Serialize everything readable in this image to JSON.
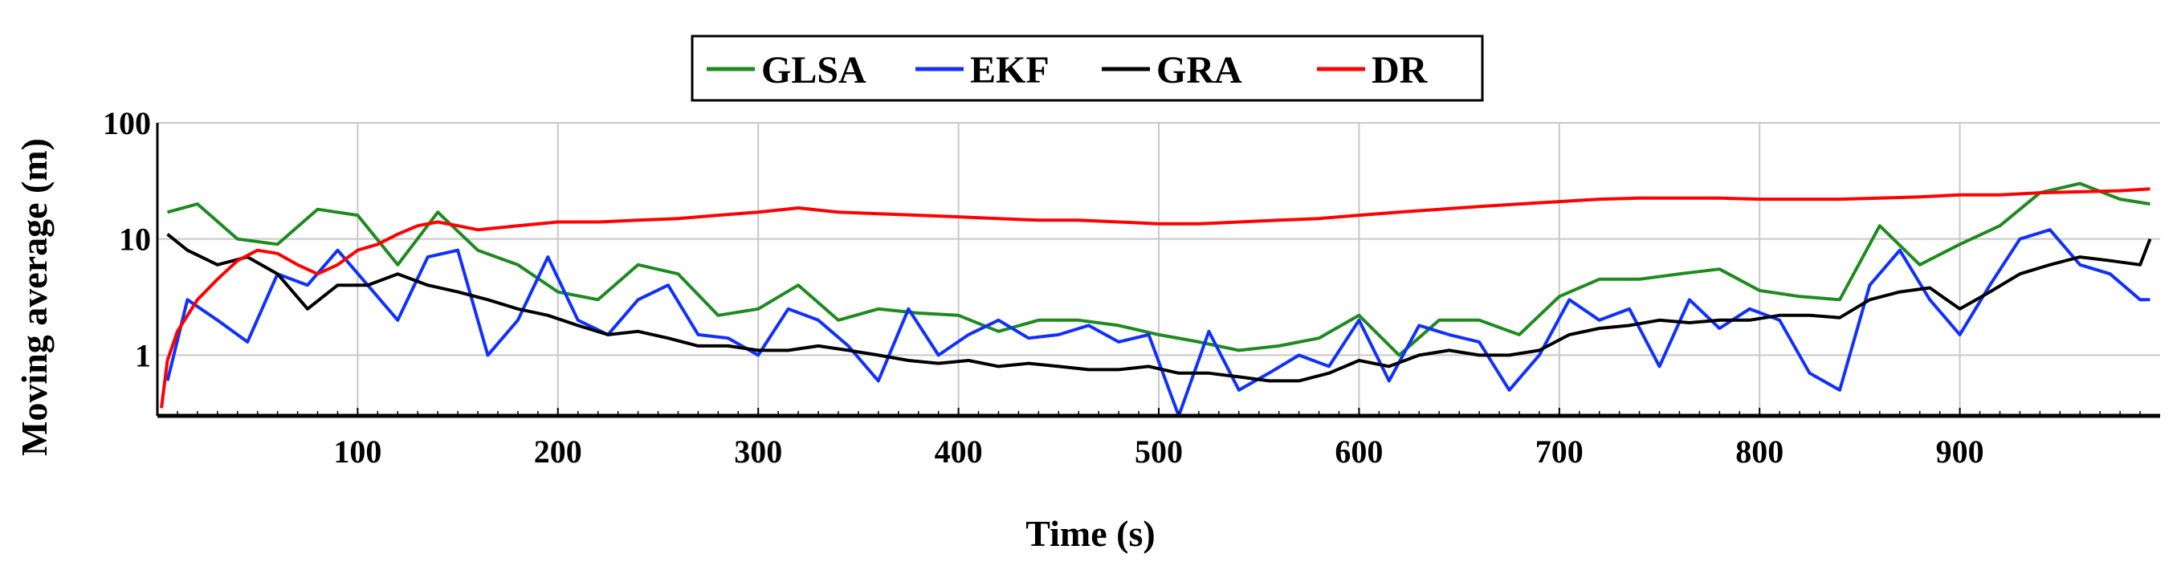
{
  "chart_data": {
    "type": "line",
    "title": "",
    "xlabel": "Time (s)",
    "ylabel": "Moving average (m)",
    "yscale": "log",
    "xlim": [
      0,
      1000
    ],
    "ylim": [
      0.3,
      100
    ],
    "x_ticks": [
      100,
      200,
      300,
      400,
      500,
      600,
      700,
      800,
      900
    ],
    "x_tick_labels": [
      "100",
      "200",
      "300",
      "400",
      "500",
      "600",
      "700",
      "800",
      "900"
    ],
    "y_ticks": [
      1,
      10,
      100
    ],
    "y_tick_labels": [
      "1",
      "10",
      "100"
    ],
    "grid": true,
    "legend_position": "top-center",
    "series": [
      {
        "name": "GLSA",
        "color": "#1f8a1f",
        "x": [
          5,
          20,
          40,
          60,
          80,
          100,
          120,
          140,
          160,
          180,
          200,
          220,
          240,
          260,
          280,
          300,
          320,
          340,
          360,
          380,
          400,
          420,
          440,
          460,
          480,
          500,
          520,
          540,
          560,
          580,
          600,
          620,
          640,
          660,
          680,
          700,
          720,
          740,
          760,
          780,
          800,
          820,
          840,
          860,
          880,
          900,
          920,
          940,
          960,
          980,
          995
        ],
        "y": [
          17,
          20,
          10,
          9,
          18,
          16,
          6,
          17,
          8,
          6,
          3.5,
          3,
          6,
          5,
          2.2,
          2.5,
          4,
          2,
          2.5,
          2.3,
          2.2,
          1.6,
          2,
          2,
          1.8,
          1.5,
          1.3,
          1.1,
          1.2,
          1.4,
          2.2,
          1,
          2,
          2,
          1.5,
          3.2,
          4.5,
          4.5,
          5,
          5.5,
          3.6,
          3.2,
          3,
          13,
          6,
          9,
          13,
          25,
          30,
          22,
          20
        ]
      },
      {
        "name": "EKF",
        "color": "#1030ff",
        "x": [
          5,
          15,
          30,
          45,
          60,
          75,
          90,
          105,
          120,
          135,
          150,
          165,
          180,
          195,
          210,
          225,
          240,
          255,
          270,
          285,
          300,
          315,
          330,
          345,
          360,
          375,
          390,
          405,
          420,
          435,
          450,
          465,
          480,
          495,
          510,
          525,
          540,
          555,
          570,
          585,
          600,
          615,
          630,
          645,
          660,
          675,
          690,
          705,
          720,
          735,
          750,
          765,
          780,
          795,
          810,
          825,
          840,
          855,
          870,
          885,
          900,
          915,
          930,
          945,
          960,
          975,
          990,
          995
        ],
        "y": [
          0.6,
          3,
          2,
          1.3,
          5,
          4,
          8,
          4,
          2,
          7,
          8,
          1,
          2,
          7,
          2,
          1.5,
          3,
          4,
          1.5,
          1.4,
          1,
          2.5,
          2,
          1.2,
          0.6,
          2.5,
          1,
          1.5,
          2,
          1.4,
          1.5,
          1.8,
          1.3,
          1.5,
          0.3,
          1.6,
          0.5,
          0.7,
          1,
          0.8,
          2,
          0.6,
          1.8,
          1.5,
          1.3,
          0.5,
          1,
          3,
          2,
          2.5,
          0.8,
          3,
          1.7,
          2.5,
          2,
          0.7,
          0.5,
          4,
          8,
          3,
          1.5,
          4,
          10,
          12,
          6,
          5,
          3,
          3
        ]
      },
      {
        "name": "GRA",
        "color": "#000000",
        "x": [
          5,
          15,
          30,
          45,
          60,
          75,
          90,
          105,
          120,
          135,
          150,
          165,
          180,
          195,
          210,
          225,
          240,
          255,
          270,
          285,
          300,
          315,
          330,
          345,
          360,
          375,
          390,
          405,
          420,
          435,
          450,
          465,
          480,
          495,
          510,
          525,
          540,
          555,
          570,
          585,
          600,
          615,
          630,
          645,
          660,
          675,
          690,
          705,
          720,
          735,
          750,
          765,
          780,
          795,
          810,
          825,
          840,
          855,
          870,
          885,
          900,
          915,
          930,
          945,
          960,
          975,
          990,
          995
        ],
        "y": [
          11,
          8,
          6,
          7,
          5,
          2.5,
          4,
          4,
          5,
          4,
          3.5,
          3,
          2.5,
          2.2,
          1.8,
          1.5,
          1.6,
          1.4,
          1.2,
          1.2,
          1.1,
          1.1,
          1.2,
          1.1,
          1,
          0.9,
          0.85,
          0.9,
          0.8,
          0.85,
          0.8,
          0.75,
          0.75,
          0.8,
          0.7,
          0.7,
          0.65,
          0.6,
          0.6,
          0.7,
          0.9,
          0.8,
          1,
          1.1,
          1,
          1,
          1.1,
          1.5,
          1.7,
          1.8,
          2,
          1.9,
          2,
          2,
          2.2,
          2.2,
          2.1,
          3,
          3.5,
          3.8,
          2.5,
          3.5,
          5,
          6,
          7,
          6.5,
          6,
          10
        ]
      },
      {
        "name": "DR",
        "color": "#ff0000",
        "x": [
          2,
          5,
          10,
          20,
          30,
          40,
          50,
          60,
          70,
          80,
          90,
          100,
          110,
          120,
          130,
          140,
          150,
          160,
          180,
          200,
          220,
          240,
          260,
          280,
          300,
          320,
          340,
          360,
          380,
          400,
          420,
          440,
          460,
          480,
          500,
          520,
          540,
          560,
          580,
          600,
          620,
          640,
          660,
          680,
          700,
          720,
          740,
          760,
          780,
          800,
          820,
          840,
          860,
          880,
          900,
          920,
          940,
          960,
          980,
          995
        ],
        "y": [
          0.35,
          0.9,
          1.6,
          3,
          4.5,
          6.5,
          8,
          7.5,
          6,
          5,
          6,
          8,
          9,
          11,
          13,
          14,
          13,
          12,
          13,
          14,
          14,
          14.5,
          15,
          16,
          17,
          18.5,
          17,
          16.5,
          16,
          15.5,
          15,
          14.5,
          14.5,
          14,
          13.5,
          13.5,
          14,
          14.5,
          15,
          16,
          17,
          18,
          19,
          20,
          21,
          22,
          22.5,
          22.5,
          22.5,
          22,
          22,
          22,
          22.5,
          23,
          24,
          24,
          25,
          25.5,
          26,
          27
        ]
      }
    ]
  }
}
